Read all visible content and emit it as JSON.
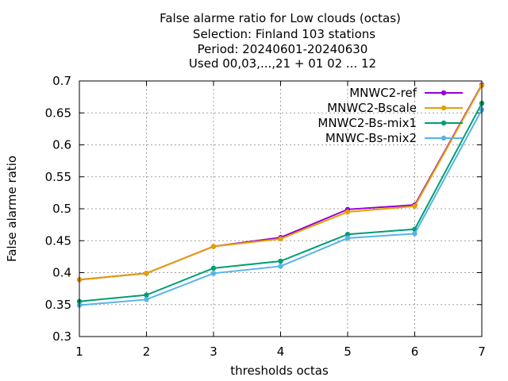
{
  "chart_data": {
    "type": "line",
    "title_lines": [
      "False alarme ratio  for Low clouds (octas)",
      "Selection: Finland    103 stations",
      "Period: 20240601-20240630",
      "Used 00,03,...,21 + 01 02 ... 12"
    ],
    "xlabel": "thresholds octas",
    "ylabel": "False alarme ratio",
    "x": [
      1,
      2,
      3,
      4,
      5,
      6,
      7
    ],
    "xlim": [
      1,
      7
    ],
    "ylim": [
      0.3,
      0.7
    ],
    "yticks": [
      "0.3",
      "0.35",
      "0.4",
      "0.45",
      "0.5",
      "0.55",
      "0.6",
      "0.65",
      "0.7"
    ],
    "xticks": [
      "1",
      "2",
      "3",
      "4",
      "5",
      "6",
      "7"
    ],
    "grid": true,
    "legend_position": "top-right",
    "series": [
      {
        "name": "MNWC2-ref",
        "color": "#9400d3",
        "values": [
          0.389,
          0.399,
          0.441,
          0.455,
          0.499,
          0.506,
          0.694
        ]
      },
      {
        "name": "MNWC2-Bscale",
        "color": "#e69f00",
        "values": [
          0.389,
          0.399,
          0.441,
          0.453,
          0.495,
          0.504,
          0.693
        ]
      },
      {
        "name": "MNWC2-Bs-mix1",
        "color": "#009e73",
        "values": [
          0.355,
          0.365,
          0.407,
          0.418,
          0.46,
          0.468,
          0.665
        ]
      },
      {
        "name": "MNWC-Bs-mix2",
        "color": "#56b4e9",
        "values": [
          0.349,
          0.358,
          0.399,
          0.41,
          0.454,
          0.461,
          0.655
        ]
      }
    ]
  }
}
